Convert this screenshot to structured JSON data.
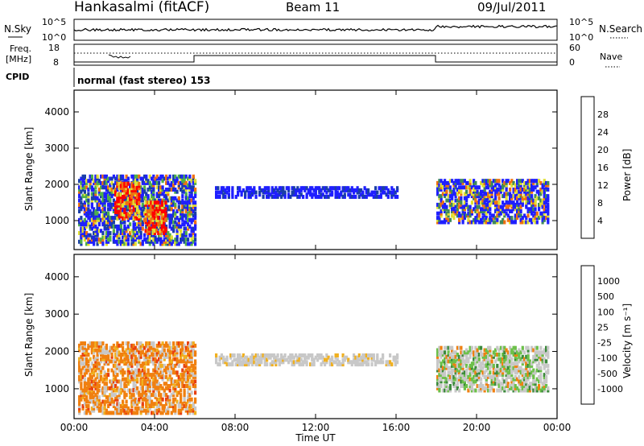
{
  "header": {
    "title": "Hankasalmi (fitACF)",
    "beam": "Beam 11",
    "date": "09/Jul/2011"
  },
  "top_panels": {
    "nsky_label": "N.Sky",
    "nsky_ticks": [
      "10^5",
      "10^0"
    ],
    "nsearch_label": "N.Search",
    "nsearch_ticks": [
      "10^5",
      "10^0"
    ],
    "freq_label_line1": "Freq.",
    "freq_label_line2": "[MHz]",
    "freq_ticks": [
      "18",
      "8"
    ],
    "nave_label": "Nave",
    "nave_ticks": [
      "60",
      "0"
    ],
    "cpid_label": "CPID",
    "cpid_text": "normal (fast stereo) 153"
  },
  "colors": {
    "power_scale": [
      "#1f1fff",
      "#1a3fa8",
      "#3f8a5a",
      "#4fb04a",
      "#e0e030",
      "#f0b020",
      "#f07010",
      "#e82010",
      "#ff0000"
    ],
    "velocity_scale": [
      "#1020c8",
      "#2e6ea8",
      "#3c8a3c",
      "#6cc04a",
      "#c8c8c8",
      "#f0b020",
      "#f08010",
      "#e84010",
      "#ff0000"
    ]
  },
  "chart_data": [
    {
      "type": "heatmap",
      "name_hint": "power",
      "ylabel": "Slant Range [km]",
      "y_ticks": [
        1000,
        2000,
        3000,
        4000
      ],
      "ylim": [
        200,
        4600
      ],
      "x_ticks": [
        "00:00",
        "04:00",
        "08:00",
        "12:00",
        "16:00",
        "20:00",
        "00:00"
      ],
      "colorbar": {
        "label": "Power [dB]",
        "ticks": [
          "28",
          "24",
          "20",
          "16",
          "12",
          "8",
          "4"
        ]
      },
      "regions": [
        {
          "t0": 0.2,
          "t1": 6.0,
          "r0": 300,
          "r1": 2200,
          "level": "mixed-high"
        },
        {
          "t0": 2.0,
          "t1": 3.2,
          "r0": 1000,
          "r1": 2000,
          "level": "red"
        },
        {
          "t0": 3.5,
          "t1": 4.5,
          "r0": 600,
          "r1": 1500,
          "level": "red"
        },
        {
          "t0": 7.0,
          "t1": 16.0,
          "r0": 1600,
          "r1": 1900,
          "level": "low"
        },
        {
          "t0": 18.0,
          "t1": 23.5,
          "r0": 900,
          "r1": 2100,
          "level": "mixed"
        }
      ]
    },
    {
      "type": "heatmap",
      "name_hint": "velocity",
      "ylabel": "Slant Range [km]",
      "y_ticks": [
        1000,
        2000,
        3000,
        4000
      ],
      "ylim": [
        200,
        4600
      ],
      "x_ticks": [
        "00:00",
        "04:00",
        "08:00",
        "12:00",
        "16:00",
        "20:00",
        "00:00"
      ],
      "xlabel": "Time UT",
      "colorbar": {
        "label": "Velocity [m s⁻¹]",
        "ticks": [
          "1000",
          "500",
          "100",
          "25",
          "-25",
          "-100",
          "-500",
          "-1000"
        ]
      },
      "regions": [
        {
          "t0": 0.2,
          "t1": 6.0,
          "r0": 300,
          "r1": 2200,
          "level": "orange"
        },
        {
          "t0": 7.0,
          "t1": 16.0,
          "r0": 1600,
          "r1": 1900,
          "level": "grey"
        },
        {
          "t0": 18.0,
          "t1": 23.5,
          "r0": 900,
          "r1": 2100,
          "level": "mixed"
        }
      ]
    }
  ]
}
